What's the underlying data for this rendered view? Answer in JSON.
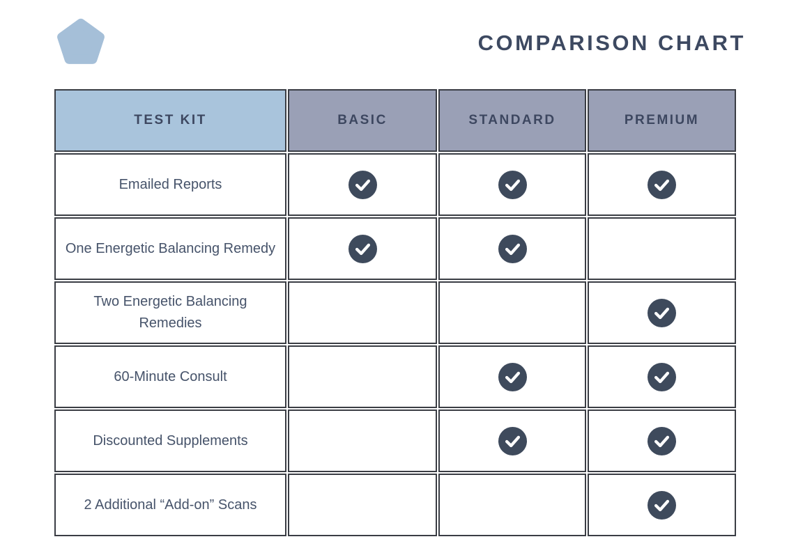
{
  "page": {
    "title": "COMPARISON CHART"
  },
  "logo": {
    "shape": "pentagon",
    "color": "#a5bfd8"
  },
  "colors": {
    "title_text": "#3d4961",
    "header_text": "#3d4760",
    "header_testkit_bg": "#a9c4dc",
    "header_plan_bg": "#9aa0b6",
    "cell_border": "#3a3d44",
    "body_text": "#46536a",
    "check_circle": "#3e4a5c",
    "check_mark": "#ffffff",
    "page_bg": "#ffffff"
  },
  "icons": {
    "check": "check-in-dark-circle",
    "logo": "pentagon-shape"
  },
  "chart_data": {
    "type": "table",
    "title": "COMPARISON CHART",
    "columns": [
      "TEST KIT",
      "BASIC",
      "STANDARD",
      "PREMIUM"
    ],
    "rows": [
      {
        "feature": "Emailed Reports",
        "basic": true,
        "standard": true,
        "premium": true
      },
      {
        "feature": "One Energetic Balancing Remedy",
        "basic": true,
        "standard": true,
        "premium": false
      },
      {
        "feature": "Two Energetic Balancing Remedies",
        "basic": false,
        "standard": false,
        "premium": true
      },
      {
        "feature": "60-Minute Consult",
        "basic": false,
        "standard": true,
        "premium": true
      },
      {
        "feature": "Discounted Supplements",
        "basic": false,
        "standard": true,
        "premium": true
      },
      {
        "feature": "2 Additional “Add-on” Scans",
        "basic": false,
        "standard": false,
        "premium": true
      }
    ]
  }
}
